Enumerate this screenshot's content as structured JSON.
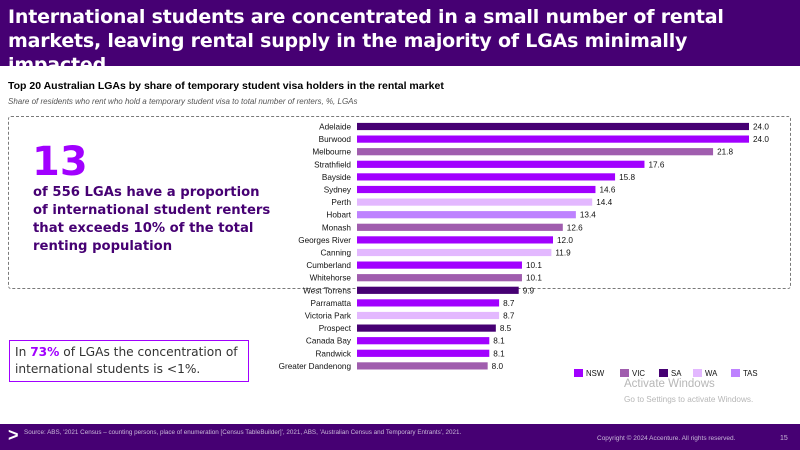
{
  "header": {
    "title": "International students are concentrated in a small number of rental markets, leaving rental supply in the majority of LGAs minimally impacted"
  },
  "highlight": {
    "number": "13",
    "text": "of 556 LGAs have a proportion of international student renters that exceeds 10% of the total renting population"
  },
  "callout": {
    "prefix": "In ",
    "percent": "73%",
    "suffix": " of LGAs the concentration of international students is <1%."
  },
  "footer": {
    "arrow": ">",
    "source": "Source: ABS, '2021 Census – counting persons, place of enumeration [Census TableBuilder]', 2021, ABS, 'Australian Census and Temporary Entrants', 2021.",
    "copyright": "Copyright © 2024 Accenture. All rights reserved.",
    "page": "15"
  },
  "watermark": {
    "line1": "Activate Windows",
    "line2": "Go to Settings to activate Windows."
  },
  "colors": {
    "NSW": "#a100ff",
    "VIC": "#a05dae",
    "SA": "#460073",
    "WA": "#e3b8ff",
    "TAS": "#be82ff"
  },
  "chart_data": {
    "type": "bar",
    "orientation": "horizontal",
    "title": "Top 20 Australian LGAs by share of temporary student visa holders in the rental market",
    "subtitle": "Share of residents who rent who hold a temporary student visa to total number of renters, %, LGAs",
    "xlim": [
      0,
      24.0
    ],
    "categories": [
      "Adelaide",
      "Burwood",
      "Melbourne",
      "Strathfield",
      "Bayside",
      "Sydney",
      "Perth",
      "Hobart",
      "Monash",
      "Georges River",
      "Canning",
      "Cumberland",
      "Whitehorse",
      "West Torrens",
      "Parramatta",
      "Victoria Park",
      "Prospect",
      "Canada Bay",
      "Randwick",
      "Greater Dandenong"
    ],
    "values": [
      24.0,
      24.0,
      21.8,
      17.6,
      15.8,
      14.6,
      14.4,
      13.4,
      12.6,
      12.0,
      11.9,
      10.1,
      10.1,
      9.9,
      8.7,
      8.7,
      8.5,
      8.1,
      8.1,
      8.0
    ],
    "value_labels": [
      "24.0",
      "24.0",
      "21.8",
      "17.6",
      "15.8",
      "14.6",
      "14.4",
      "13.4",
      "12.6",
      "12.0",
      "11.9",
      "10.1",
      "10.1",
      "9.9",
      "8.7",
      "8.7",
      "8.5",
      "8.1",
      "8.1",
      "8.0"
    ],
    "states": [
      "SA",
      "NSW",
      "VIC",
      "NSW",
      "NSW",
      "NSW",
      "WA",
      "TAS",
      "VIC",
      "NSW",
      "WA",
      "NSW",
      "VIC",
      "SA",
      "NSW",
      "WA",
      "SA",
      "NSW",
      "NSW",
      "VIC"
    ],
    "legend": [
      "NSW",
      "VIC",
      "SA",
      "WA",
      "TAS"
    ],
    "legend_position": "bottom-right",
    "grid": false
  }
}
